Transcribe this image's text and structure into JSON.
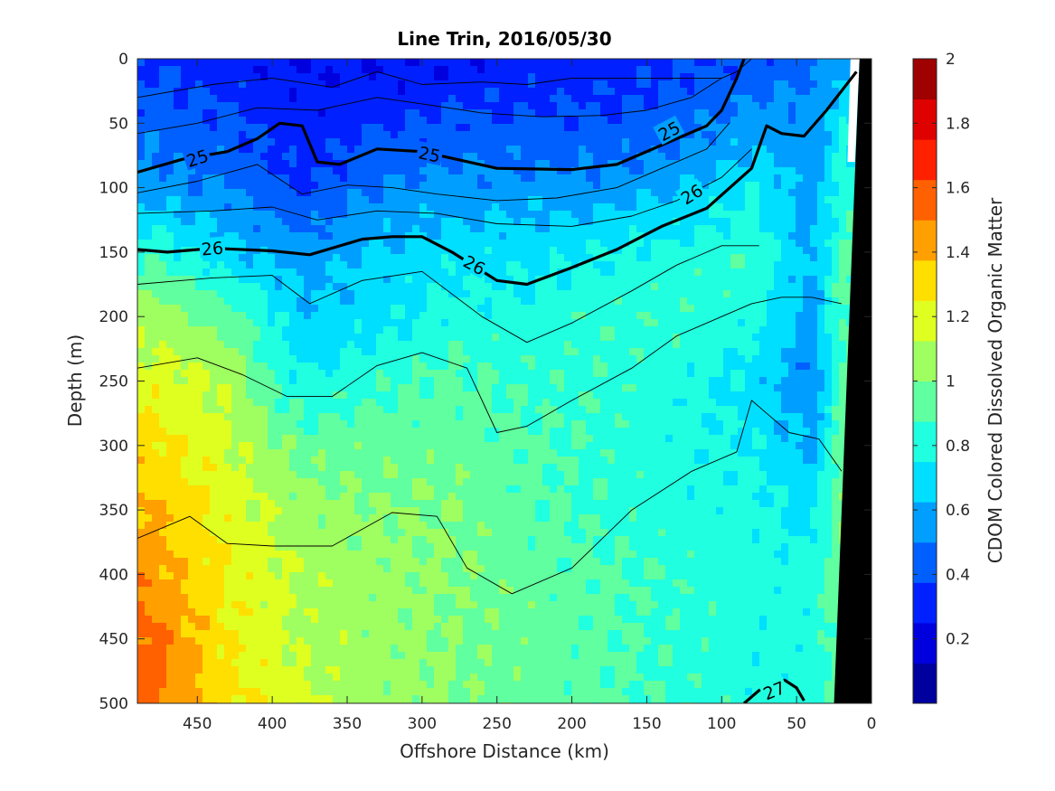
{
  "chart_data": {
    "type": "heatmap",
    "title": "Line Trin, 2016/05/30",
    "xlabel": "Offshore Distance (km)",
    "ylabel": "Depth (m)",
    "colorbar_label": "CDOM Colored Dissolved Organic Matter",
    "xlim": [
      490,
      0
    ],
    "ylim": [
      0,
      500
    ],
    "x_reversed": true,
    "y_reversed": true,
    "x_ticks": [
      450,
      400,
      350,
      300,
      250,
      200,
      150,
      100,
      50,
      0
    ],
    "y_ticks": [
      0,
      50,
      100,
      150,
      200,
      250,
      300,
      350,
      400,
      450,
      500
    ],
    "clim": [
      0,
      2
    ],
    "colorbar_ticks": [
      0.2,
      0.4,
      0.6,
      0.8,
      1,
      1.2,
      1.4,
      1.6,
      1.8,
      2
    ],
    "colorbar_levels": 16,
    "colormap": "jet",
    "grid": false,
    "field_samples": {
      "x": [
        480,
        430,
        380,
        330,
        280,
        230,
        180,
        130,
        80,
        40,
        20
      ],
      "depth": [
        0,
        50,
        100,
        150,
        200,
        250,
        300,
        350,
        400,
        450,
        500
      ],
      "cdom": [
        [
          0.35,
          0.3,
          0.25,
          0.25,
          0.25,
          0.3,
          0.3,
          0.35,
          0.4,
          0.45,
          0.6
        ],
        [
          0.45,
          0.4,
          0.3,
          0.35,
          0.4,
          0.4,
          0.4,
          0.45,
          0.55,
          0.55,
          0.75
        ],
        [
          0.55,
          0.5,
          0.35,
          0.5,
          0.55,
          0.55,
          0.55,
          0.6,
          0.75,
          0.55,
          0.8
        ],
        [
          0.85,
          0.65,
          0.55,
          0.65,
          0.7,
          0.7,
          0.75,
          0.8,
          0.85,
          0.6,
          0.9
        ],
        [
          1.05,
          0.95,
          0.65,
          0.7,
          0.8,
          0.8,
          0.85,
          0.85,
          0.8,
          0.55,
          0.9
        ],
        [
          1.2,
          1.1,
          0.75,
          0.85,
          0.9,
          0.85,
          0.85,
          0.8,
          0.7,
          0.5,
          0.9
        ],
        [
          1.3,
          1.15,
          0.95,
          0.95,
          0.95,
          0.9,
          0.85,
          0.8,
          0.75,
          0.6,
          0.95
        ],
        [
          1.4,
          1.2,
          1.05,
          1.0,
          1.0,
          0.9,
          0.85,
          0.8,
          0.8,
          0.7,
          1.0
        ],
        [
          1.45,
          1.25,
          1.1,
          1.05,
          1.0,
          0.95,
          0.9,
          0.85,
          0.8,
          0.8,
          0.95
        ],
        [
          1.55,
          1.25,
          1.1,
          1.05,
          1.0,
          0.95,
          0.9,
          0.85,
          0.8,
          0.8,
          0.95
        ],
        [
          1.55,
          1.3,
          1.15,
          1.05,
          1.0,
          0.95,
          0.9,
          0.85,
          0.8,
          0.8,
          0.95
        ]
      ]
    },
    "contours": [
      {
        "level": "25",
        "bold": true,
        "x": [
          490,
          460,
          430,
          410,
          395,
          380,
          370,
          355,
          330,
          300,
          250,
          200,
          170,
          140,
          110,
          100,
          90,
          85
        ],
        "y": [
          88,
          78,
          72,
          62,
          50,
          52,
          80,
          82,
          70,
          72,
          85,
          86,
          82,
          67,
          52,
          40,
          15,
          0
        ]
      },
      {
        "level": "26",
        "bold": true,
        "x": [
          490,
          470,
          440,
          400,
          375,
          340,
          320,
          300,
          280,
          250,
          230,
          200,
          170,
          140,
          110,
          80,
          70,
          60,
          45,
          30,
          10
        ],
        "y": [
          148,
          150,
          147,
          149,
          152,
          140,
          138,
          138,
          150,
          172,
          175,
          162,
          148,
          130,
          116,
          85,
          52,
          58,
          60,
          40,
          10
        ]
      },
      {
        "level": "27",
        "bold": true,
        "x": [
          85,
          75,
          58,
          50,
          45
        ],
        "y": [
          500,
          490,
          482,
          488,
          498
        ]
      },
      {
        "level": "",
        "bold": false,
        "x": [
          490,
          440,
          400,
          360,
          330,
          300,
          260,
          230,
          200,
          150,
          120,
          100,
          90,
          80,
          60
        ],
        "y": [
          30,
          20,
          15,
          22,
          10,
          20,
          18,
          20,
          15,
          15,
          15,
          15,
          10,
          0,
          0
        ]
      },
      {
        "level": "",
        "bold": false,
        "x": [
          490,
          450,
          410,
          370,
          330,
          300,
          260,
          220,
          180,
          150,
          120,
          100
        ],
        "y": [
          58,
          50,
          38,
          40,
          30,
          35,
          42,
          45,
          44,
          40,
          30,
          15
        ]
      },
      {
        "level": "",
        "bold": false,
        "x": [
          490,
          450,
          410,
          380,
          350,
          320,
          290,
          250,
          210,
          170,
          140,
          110,
          95
        ],
        "y": [
          104,
          95,
          82,
          105,
          98,
          100,
          105,
          110,
          108,
          100,
          85,
          70,
          50
        ]
      },
      {
        "level": "",
        "bold": false,
        "x": [
          490,
          440,
          400,
          370,
          330,
          290,
          250,
          200,
          160,
          130,
          100,
          80
        ],
        "y": [
          120,
          118,
          115,
          125,
          118,
          120,
          128,
          130,
          122,
          110,
          92,
          70
        ]
      },
      {
        "level": "",
        "bold": false,
        "x": [
          490,
          440,
          400,
          375,
          340,
          300,
          260,
          230,
          200,
          160,
          130,
          100,
          75
        ],
        "y": [
          175,
          170,
          168,
          190,
          172,
          165,
          200,
          220,
          205,
          180,
          160,
          145,
          145
        ]
      },
      {
        "level": "",
        "bold": false,
        "x": [
          490,
          450,
          420,
          390,
          360,
          330,
          300,
          270,
          250,
          230,
          200,
          160,
          130,
          100,
          80,
          60,
          40,
          20
        ],
        "y": [
          240,
          232,
          245,
          262,
          262,
          238,
          228,
          240,
          290,
          285,
          265,
          240,
          215,
          200,
          190,
          185,
          185,
          190
        ]
      },
      {
        "level": "",
        "bold": false,
        "x": [
          490,
          455,
          430,
          400,
          360,
          320,
          290,
          270,
          240,
          200,
          160,
          120,
          90,
          80,
          70,
          55,
          35,
          20
        ],
        "y": [
          372,
          355,
          376,
          378,
          378,
          352,
          355,
          395,
          415,
          395,
          350,
          320,
          305,
          265,
          275,
          290,
          295,
          320
        ]
      }
    ],
    "land_polygon_x": [
      8,
      0,
      0,
      25
    ],
    "land_polygon_y": [
      0,
      0,
      500,
      500
    ]
  }
}
